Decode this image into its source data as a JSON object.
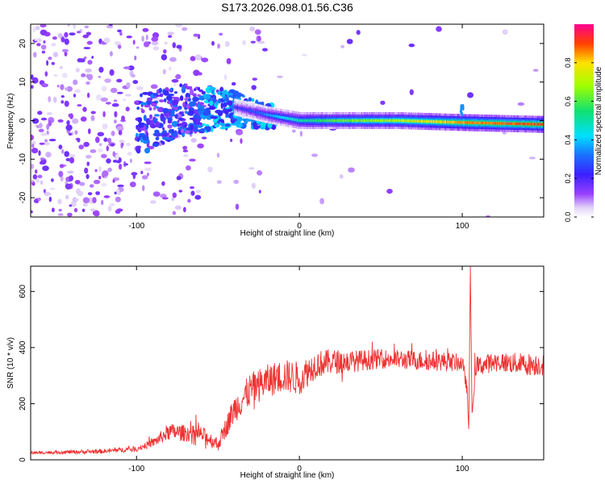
{
  "title": "S173.2026.098.01.56.C36",
  "chart_data": [
    {
      "type": "heatmap",
      "title": "S173.2026.098.01.56.C36",
      "xlabel": "Height of straight line (km)",
      "ylabel": "Frequency (Hz)",
      "xlim": [
        -165,
        150
      ],
      "ylim": [
        -25,
        25
      ],
      "xticks": [
        -100,
        0,
        100
      ],
      "yticks": [
        -20,
        -10,
        0,
        10,
        20
      ],
      "colorbar": {
        "label": "Normalized spectral amplitude",
        "range": [
          0,
          1
        ],
        "ticks": [
          0.0,
          0.2,
          0.4,
          0.6,
          0.8
        ],
        "tick_labels": [
          "0.0",
          "0.2",
          "0.4",
          "0.6",
          "0.8"
        ]
      },
      "ridge": {
        "description_points_km": [
          -40,
          -20,
          0,
          20,
          60,
          100,
          150
        ],
        "center_freq_hz": [
          3.5,
          1.5,
          0,
          0,
          0,
          -0.5,
          -1
        ],
        "amplitude": [
          0.2,
          0.35,
          0.5,
          0.6,
          0.7,
          0.85,
          0.9
        ]
      }
    },
    {
      "type": "line",
      "xlabel": "Height of straight line (km)",
      "ylabel": "SNR (10 * v/v)",
      "xlim": [
        -165,
        150
      ],
      "ylim": [
        0,
        690
      ],
      "xticks": [
        -100,
        0,
        100
      ],
      "yticks": [
        0,
        200,
        400,
        600
      ],
      "series": [
        {
          "name": "SNR",
          "color": "#ee3333",
          "x": [
            -165,
            -120,
            -100,
            -90,
            -80,
            -70,
            -60,
            -50,
            -40,
            -30,
            -20,
            -10,
            0,
            10,
            20,
            30,
            50,
            70,
            90,
            100,
            103,
            104,
            105,
            106,
            108,
            120,
            140,
            150
          ],
          "y": [
            25,
            30,
            40,
            60,
            100,
            95,
            90,
            55,
            180,
            250,
            280,
            300,
            290,
            340,
            350,
            350,
            360,
            355,
            350,
            345,
            250,
            100,
            690,
            150,
            330,
            350,
            340,
            340
          ],
          "noise": [
            5,
            8,
            10,
            15,
            30,
            30,
            30,
            25,
            50,
            60,
            60,
            60,
            60,
            50,
            45,
            40,
            35,
            35,
            35,
            30,
            20,
            10,
            0,
            20,
            35,
            35,
            40,
            40
          ]
        }
      ]
    }
  ]
}
